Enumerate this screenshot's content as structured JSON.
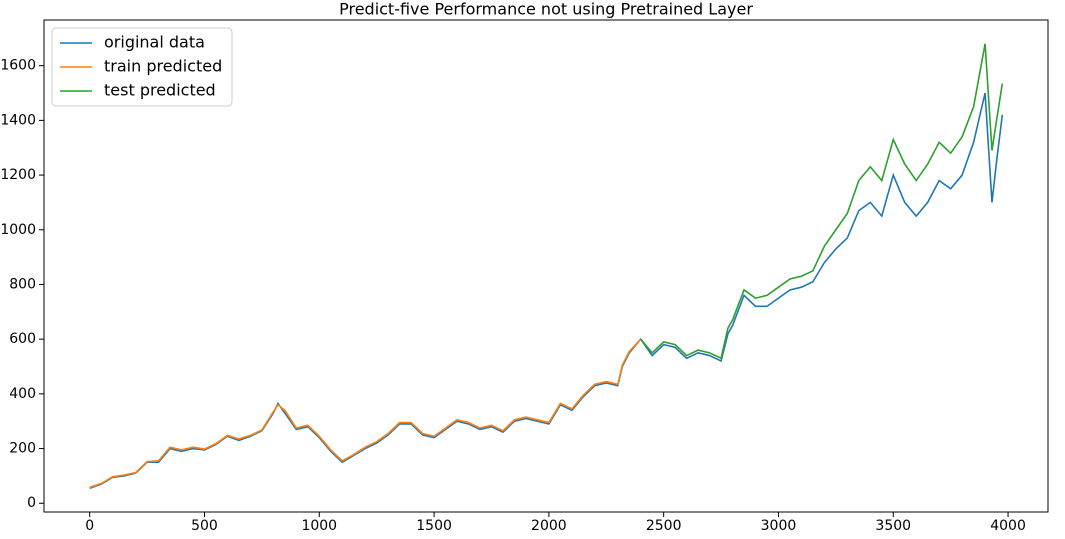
{
  "chart_data": {
    "type": "line",
    "title": "Predict-five Performance not using Pretrained Layer",
    "x": [
      0,
      50,
      100,
      150,
      200,
      250,
      300,
      350,
      400,
      450,
      500,
      550,
      600,
      650,
      700,
      750,
      800,
      820,
      850,
      900,
      950,
      1000,
      1050,
      1100,
      1150,
      1200,
      1250,
      1300,
      1350,
      1400,
      1450,
      1500,
      1550,
      1600,
      1650,
      1700,
      1750,
      1800,
      1850,
      1900,
      1950,
      2000,
      2050,
      2100,
      2150,
      2200,
      2250,
      2300,
      2320,
      2350,
      2400,
      2450,
      2500,
      2550,
      2600,
      2650,
      2700,
      2750,
      2780,
      2800,
      2850,
      2900,
      2950,
      3000,
      3050,
      3100,
      3150,
      3200,
      3250,
      3300,
      3350,
      3400,
      3450,
      3500,
      3550,
      3600,
      3650,
      3700,
      3750,
      3800,
      3850,
      3900,
      3930,
      3950,
      3975
    ],
    "series": [
      {
        "name": "original data",
        "color": "#1f77b4",
        "values": [
          55,
          70,
          95,
          100,
          110,
          150,
          150,
          200,
          190,
          200,
          195,
          215,
          245,
          230,
          245,
          265,
          330,
          365,
          330,
          270,
          280,
          240,
          190,
          150,
          175,
          200,
          220,
          250,
          290,
          290,
          250,
          240,
          270,
          300,
          290,
          270,
          280,
          260,
          300,
          310,
          300,
          290,
          360,
          340,
          390,
          430,
          440,
          430,
          500,
          550,
          600,
          540,
          580,
          570,
          530,
          550,
          540,
          520,
          620,
          650,
          760,
          720,
          720,
          750,
          780,
          790,
          810,
          880,
          930,
          970,
          1070,
          1100,
          1050,
          1200,
          1100,
          1050,
          1100,
          1180,
          1150,
          1200,
          1320,
          1500,
          1100,
          1250,
          1420
        ]
      },
      {
        "name": "train predicted",
        "color": "#ff7f0e",
        "values": [
          58,
          72,
          97,
          103,
          112,
          152,
          155,
          205,
          195,
          205,
          198,
          218,
          248,
          235,
          248,
          268,
          335,
          360,
          340,
          275,
          285,
          245,
          195,
          155,
          178,
          205,
          225,
          255,
          295,
          295,
          255,
          245,
          275,
          305,
          295,
          275,
          285,
          265,
          305,
          315,
          305,
          295,
          365,
          345,
          395,
          435,
          445,
          435,
          505,
          555,
          600,
          null,
          null,
          null,
          null,
          null,
          null,
          null,
          null,
          null,
          null,
          null,
          null,
          null,
          null,
          null,
          null,
          null,
          null,
          null,
          null,
          null,
          null,
          null,
          null,
          null,
          null,
          null,
          null,
          null,
          null,
          null,
          null,
          null,
          null
        ]
      },
      {
        "name": "test predicted",
        "color": "#2ca02c",
        "values": [
          null,
          null,
          null,
          null,
          null,
          null,
          null,
          null,
          null,
          null,
          null,
          null,
          null,
          null,
          null,
          null,
          null,
          null,
          null,
          null,
          null,
          null,
          null,
          null,
          null,
          null,
          null,
          null,
          null,
          null,
          null,
          null,
          null,
          null,
          null,
          null,
          null,
          null,
          null,
          null,
          null,
          null,
          null,
          null,
          null,
          null,
          null,
          null,
          null,
          null,
          600,
          550,
          590,
          580,
          540,
          560,
          550,
          530,
          640,
          670,
          780,
          750,
          760,
          790,
          820,
          830,
          850,
          940,
          1000,
          1060,
          1180,
          1230,
          1180,
          1330,
          1240,
          1180,
          1240,
          1320,
          1280,
          1340,
          1450,
          1680,
          1290,
          1400,
          1535
        ]
      }
    ],
    "xlim": [
      -199,
      4174
    ],
    "ylim": [
      -32,
      1767
    ],
    "xticks": [
      0,
      500,
      1000,
      1500,
      2000,
      2500,
      3000,
      3500,
      4000
    ],
    "yticks": [
      0,
      200,
      400,
      600,
      800,
      1000,
      1200,
      1400,
      1600
    ],
    "legend": "upper left"
  }
}
